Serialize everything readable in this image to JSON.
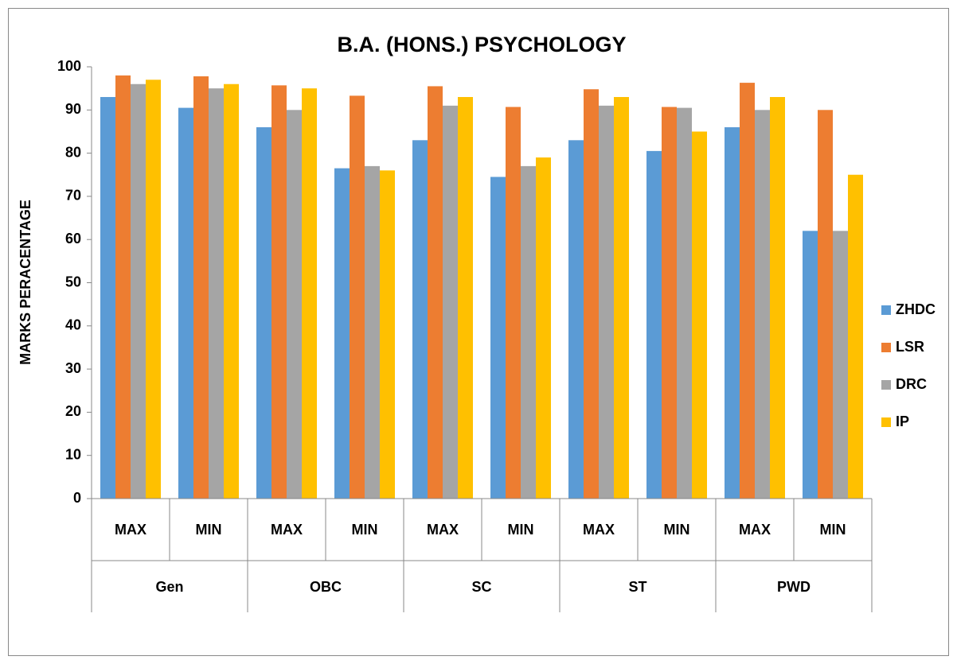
{
  "chart_data": {
    "type": "bar",
    "title": "B.A. (HONS.) PSYCHOLOGY",
    "y_label": "MARKS PERACENTAGE",
    "categories": [
      "MAX",
      "MIN",
      "MAX",
      "MIN",
      "MAX",
      "MIN",
      "MAX",
      "MIN",
      "MAX",
      "MIN"
    ],
    "category_groups": [
      "Gen",
      "OBC",
      "SC",
      "ST",
      "PWD"
    ],
    "series": [
      {
        "name": "ZHDC",
        "color": "#5b9bd5",
        "values": [
          93,
          90.5,
          86,
          76.5,
          83,
          74.5,
          83,
          80.5,
          86,
          62
        ]
      },
      {
        "name": "LSR",
        "color": "#ed7d31",
        "values": [
          98,
          97.8,
          95.7,
          93.3,
          95.5,
          90.7,
          94.8,
          90.7,
          96.3,
          90
        ]
      },
      {
        "name": "DRC",
        "color": "#a5a5a5",
        "values": [
          96,
          95,
          90,
          77,
          91,
          77,
          91,
          90.5,
          90,
          62
        ]
      },
      {
        "name": "IP",
        "color": "#ffc000",
        "values": [
          97,
          96,
          95,
          76,
          93,
          79,
          93,
          85,
          93,
          75
        ]
      }
    ],
    "ylim": [
      0,
      100
    ],
    "yticks": [
      0,
      10,
      20,
      30,
      40,
      50,
      60,
      70,
      80,
      90,
      100
    ],
    "grid": false,
    "legend": "right"
  }
}
